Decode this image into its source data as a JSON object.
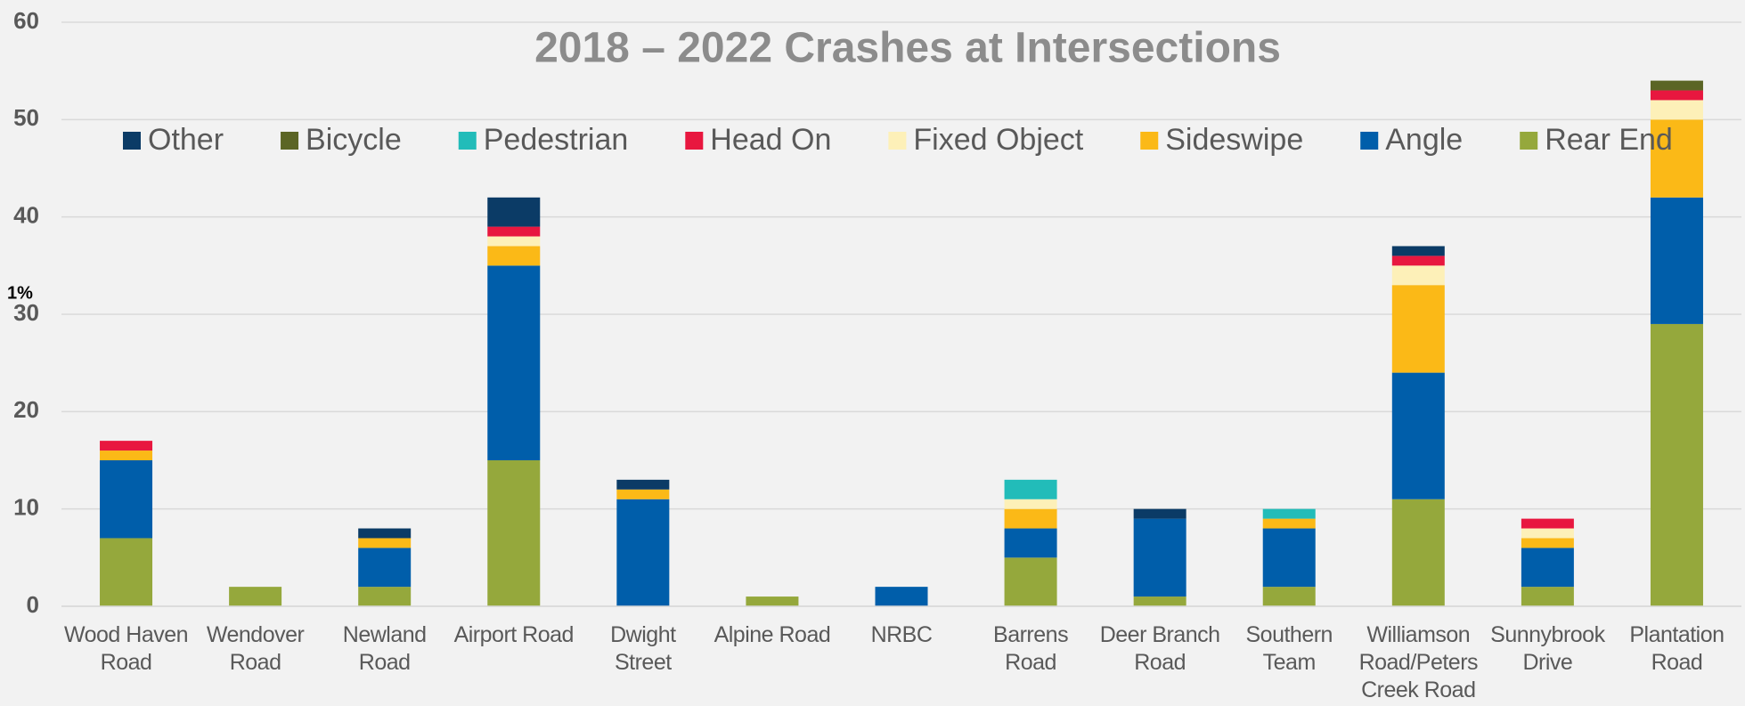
{
  "chart_data": {
    "type": "stacked_bar",
    "title": "2018 – 2022 Crashes at Intersections",
    "annotation": "1%",
    "categories": [
      "Wood Haven Road",
      "Wendover Road",
      "Newland Road",
      "Airport Road",
      "Dwight Street",
      "Alpine Road",
      "NRBC",
      "Barrens Road",
      "Deer Branch Road",
      "Southern Team",
      "Williamson Road/Peters Creek Road",
      "Sunnybrook Drive",
      "Plantation Road"
    ],
    "series": [
      {
        "name": "Rear End",
        "color": "#95a83c",
        "values": [
          7,
          2,
          2,
          15,
          0,
          1,
          0,
          5,
          1,
          2,
          11,
          2,
          29
        ]
      },
      {
        "name": "Angle",
        "color": "#005eaa",
        "values": [
          8,
          0,
          4,
          20,
          11,
          0,
          2,
          3,
          8,
          6,
          13,
          4,
          13
        ]
      },
      {
        "name": "Sideswipe",
        "color": "#fbb917",
        "values": [
          1,
          0,
          1,
          2,
          1,
          0,
          0,
          2,
          0,
          1,
          9,
          1,
          8
        ]
      },
      {
        "name": "Fixed Object",
        "color": "#fdf0b8",
        "values": [
          0,
          0,
          0,
          1,
          0,
          0,
          0,
          1,
          0,
          0,
          2,
          1,
          2
        ]
      },
      {
        "name": "Head On",
        "color": "#e8173f",
        "values": [
          1,
          0,
          0,
          1,
          0,
          0,
          0,
          0,
          0,
          0,
          1,
          1,
          1
        ]
      },
      {
        "name": "Pedestrian",
        "color": "#22bcb9",
        "values": [
          0,
          0,
          0,
          0,
          0,
          0,
          0,
          2,
          0,
          1,
          0,
          0,
          0
        ]
      },
      {
        "name": "Bicycle",
        "color": "#5b6525",
        "values": [
          0,
          0,
          0,
          0,
          0,
          0,
          0,
          0,
          0,
          0,
          0,
          0,
          1
        ]
      },
      {
        "name": "Other",
        "color": "#0b3b66",
        "values": [
          0,
          0,
          1,
          3,
          1,
          0,
          0,
          0,
          1,
          0,
          1,
          0,
          0
        ]
      }
    ],
    "ylim": [
      0,
      60
    ],
    "yticks": [
      0,
      10,
      20,
      30,
      40,
      50,
      60
    ],
    "grid": true,
    "legend": "top"
  }
}
